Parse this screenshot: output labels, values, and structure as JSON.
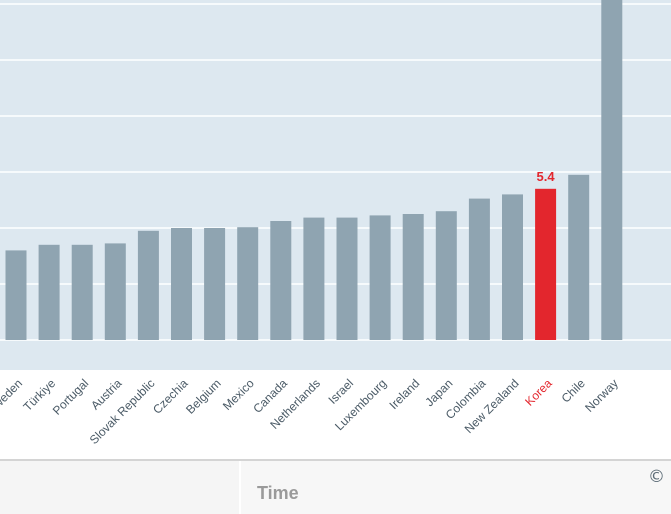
{
  "chart_data": {
    "type": "bar",
    "categories": [
      "Sweden",
      "Türkiye",
      "Portugal",
      "Austria",
      "Slovak Republic",
      "Czechia",
      "Belgium",
      "Mexico",
      "Canada",
      "Netherlands",
      "Israel",
      "Luxembourg",
      "Ireland",
      "Japan",
      "Colombia",
      "New Zealand",
      "Korea",
      "Chile",
      "Norway"
    ],
    "values": [
      3.2,
      3.4,
      3.4,
      3.45,
      3.9,
      4.0,
      4.0,
      4.03,
      4.25,
      4.37,
      4.37,
      4.45,
      4.5,
      4.6,
      5.05,
      5.2,
      5.4,
      5.9,
      12.5
    ],
    "highlight": "Korea",
    "highlight_label": "5.4",
    "ylim": [
      0,
      12.3
    ],
    "grid": true,
    "colors": {
      "bar": "#8fa4b1",
      "highlight": "#e3262d",
      "plot_bg": "#dde8f0",
      "grid": "#ffffff",
      "tick_text": "#4a5a66"
    }
  },
  "footer": {
    "time_label": "Time",
    "copyright_icon": "copyright-icon"
  }
}
